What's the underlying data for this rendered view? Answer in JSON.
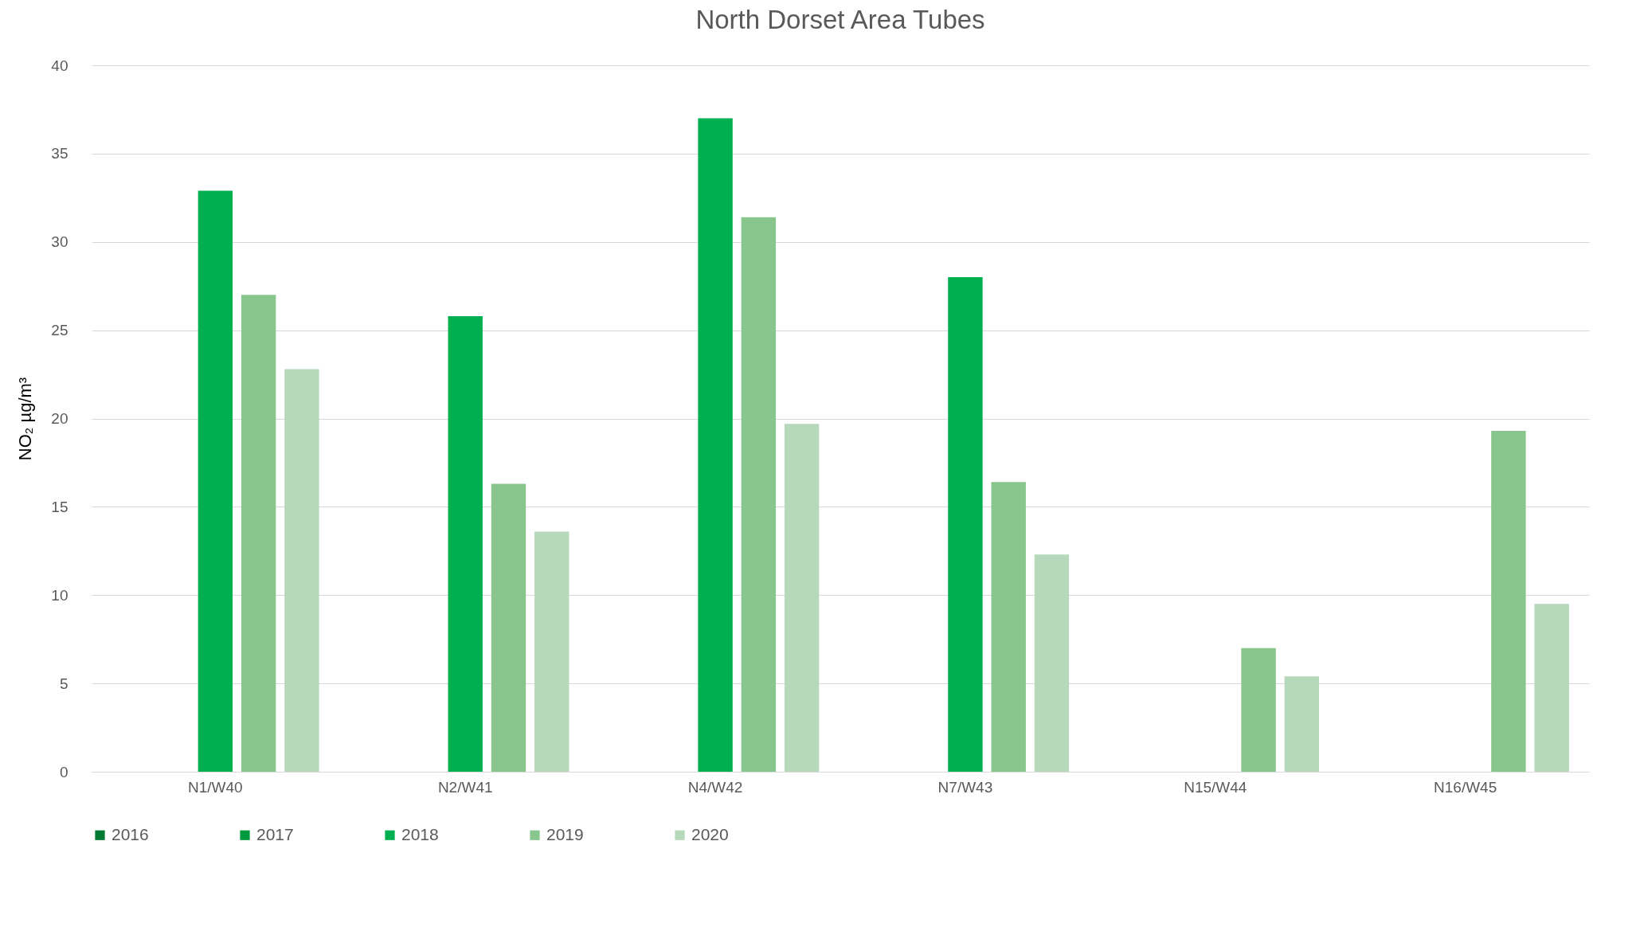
{
  "chart_data": {
    "type": "bar",
    "title": "North Dorset Area Tubes",
    "ylabel": "NO₂ µg/m³",
    "categories": [
      "N1/W40",
      "N2/W41",
      "N4/W42",
      "N7/W43",
      "N15/W44",
      "N16/W45"
    ],
    "series": [
      {
        "name": "2016",
        "color": "#007a33",
        "values": [
          null,
          null,
          null,
          null,
          null,
          null
        ]
      },
      {
        "name": "2017",
        "color": "#009a3e",
        "values": [
          null,
          null,
          null,
          null,
          null,
          null
        ]
      },
      {
        "name": "2018",
        "color": "#00b050",
        "values": [
          32.9,
          25.8,
          37,
          28,
          null,
          null
        ]
      },
      {
        "name": "2019",
        "color": "#88c68e",
        "values": [
          27,
          16.3,
          31.4,
          16.4,
          7,
          19.3
        ]
      },
      {
        "name": "2020",
        "color": "#b7d9bb",
        "values": [
          22.8,
          13.6,
          19.7,
          12.3,
          5.4,
          9.5
        ]
      }
    ],
    "ylim": [
      0,
      40
    ],
    "yticks": [
      0,
      5,
      10,
      15,
      20,
      25,
      30,
      35,
      40
    ],
    "grid": "y",
    "legend": "bottom"
  }
}
